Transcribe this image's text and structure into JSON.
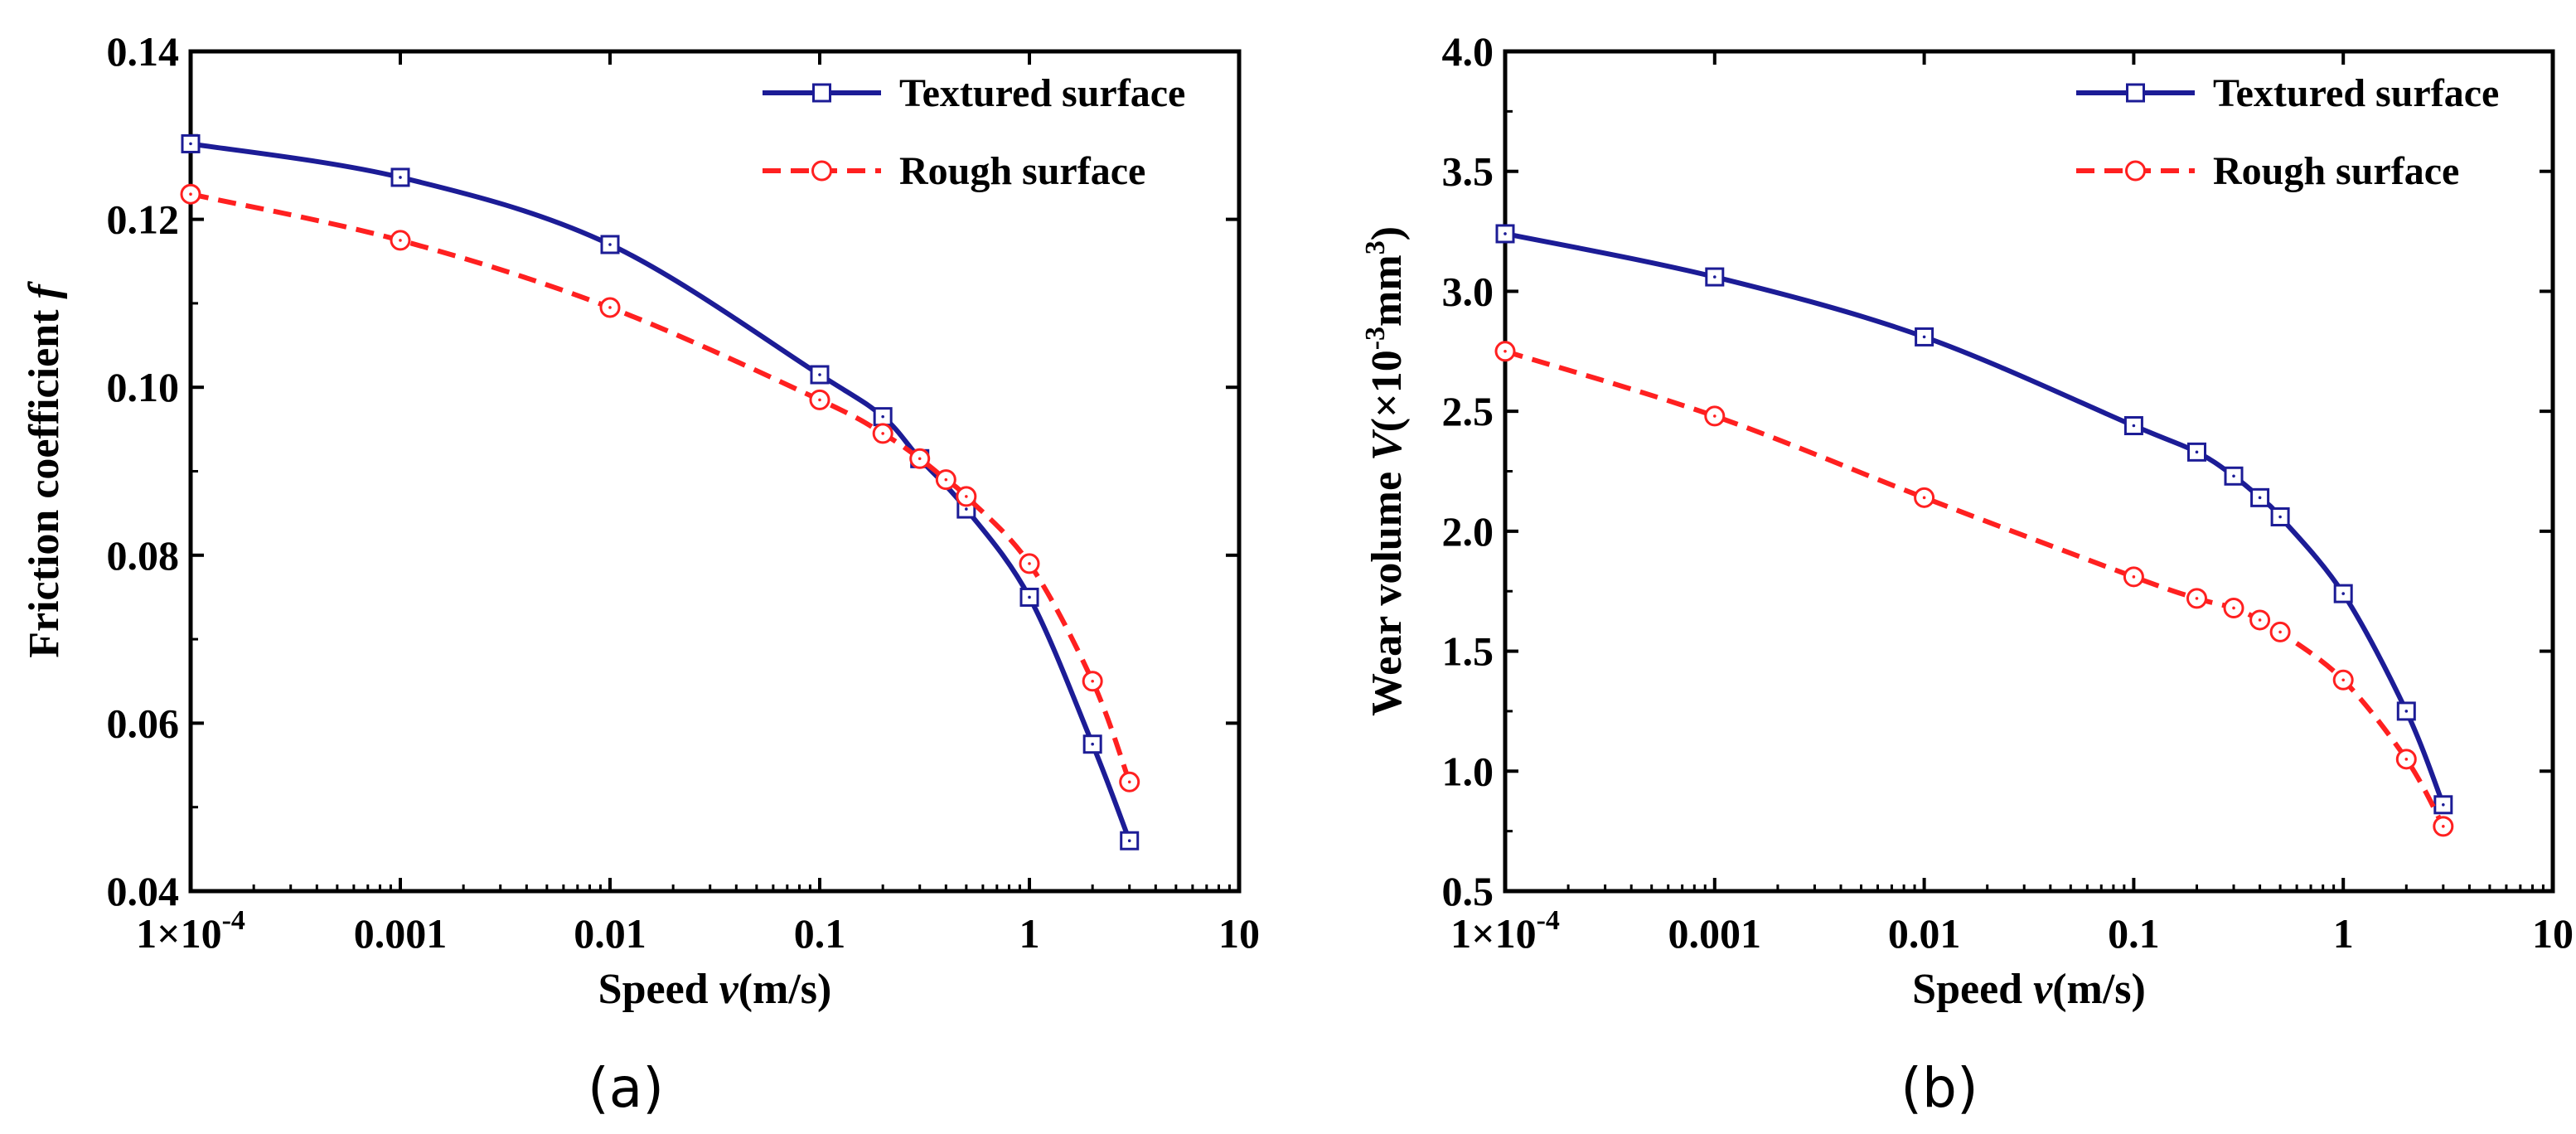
{
  "colors": {
    "textured": "#1c1c96",
    "rough": "#ff2020",
    "axis": "#000000"
  },
  "chart_data": [
    {
      "type": "line",
      "panel_label": "(a)",
      "xlabel_prefix": "Speed ",
      "xlabel_var": "v",
      "xlabel_suffix": "(m/s)",
      "ylabel_prefix": "Friction coefficient ",
      "ylabel_var": "f",
      "ylabel_sup": "",
      "ylabel_suffix": "",
      "xscale": "log",
      "xlim": [
        0.0001,
        10
      ],
      "ylim": [
        0.04,
        0.14
      ],
      "xticks": [
        0.0001,
        0.001,
        0.01,
        0.1,
        1,
        10
      ],
      "xtick_labels": [
        "1×10-4",
        "0.001",
        "0.01",
        "0.1",
        "1",
        "10"
      ],
      "yticks": [
        0.04,
        0.06,
        0.08,
        0.1,
        0.12,
        0.14
      ],
      "ytick_labels": [
        "0.04",
        "0.06",
        "0.08",
        "0.10",
        "0.12",
        "0.14"
      ],
      "legend_position": "top-right",
      "series": [
        {
          "name": "Textured surface",
          "style": "solid",
          "marker": "square",
          "x": [
            0.0001,
            0.001,
            0.01,
            0.1,
            0.2,
            0.3,
            0.5,
            1,
            2,
            3
          ],
          "y": [
            0.129,
            0.125,
            0.117,
            0.1015,
            0.0965,
            0.0915,
            0.0855,
            0.075,
            0.0575,
            0.046
          ]
        },
        {
          "name": "Rough surface",
          "style": "dashed",
          "marker": "circle",
          "x": [
            0.0001,
            0.001,
            0.01,
            0.1,
            0.2,
            0.3,
            0.4,
            0.5,
            1,
            2,
            3
          ],
          "y": [
            0.123,
            0.1175,
            0.1095,
            0.0985,
            0.0945,
            0.0915,
            0.089,
            0.087,
            0.079,
            0.065,
            0.053
          ]
        }
      ]
    },
    {
      "type": "line",
      "panel_label": "(b)",
      "xlabel_prefix": "Speed ",
      "xlabel_var": "v",
      "xlabel_suffix": "(m/s)",
      "ylabel_prefix": "Wear volume ",
      "ylabel_var": "V",
      "ylabel_mid": "(×10",
      "ylabel_sup": "-3",
      "ylabel_suffix": "mm",
      "ylabel_sup2": "3",
      "ylabel_end": ")",
      "xscale": "log",
      "xlim": [
        0.0001,
        10
      ],
      "ylim": [
        0.5,
        4.0
      ],
      "xticks": [
        0.0001,
        0.001,
        0.01,
        0.1,
        1,
        10
      ],
      "xtick_labels": [
        "1×10-4",
        "0.001",
        "0.01",
        "0.1",
        "1",
        "10"
      ],
      "yticks": [
        0.5,
        1.0,
        1.5,
        2.0,
        2.5,
        3.0,
        3.5,
        4.0
      ],
      "ytick_labels": [
        "0.5",
        "1.0",
        "1.5",
        "2.0",
        "2.5",
        "3.0",
        "3.5",
        "4.0"
      ],
      "legend_position": "top-right",
      "series": [
        {
          "name": "Textured surface",
          "style": "solid",
          "marker": "square",
          "x": [
            0.0001,
            0.001,
            0.01,
            0.1,
            0.2,
            0.3,
            0.4,
            0.5,
            1,
            2,
            3
          ],
          "y": [
            3.24,
            3.06,
            2.81,
            2.44,
            2.33,
            2.23,
            2.14,
            2.06,
            1.74,
            1.25,
            0.86
          ]
        },
        {
          "name": "Rough surface",
          "style": "dashed",
          "marker": "circle",
          "x": [
            0.0001,
            0.001,
            0.01,
            0.1,
            0.2,
            0.3,
            0.4,
            0.5,
            1,
            2,
            3
          ],
          "y": [
            2.75,
            2.48,
            2.14,
            1.81,
            1.72,
            1.68,
            1.63,
            1.58,
            1.38,
            1.05,
            0.77
          ]
        }
      ]
    }
  ]
}
